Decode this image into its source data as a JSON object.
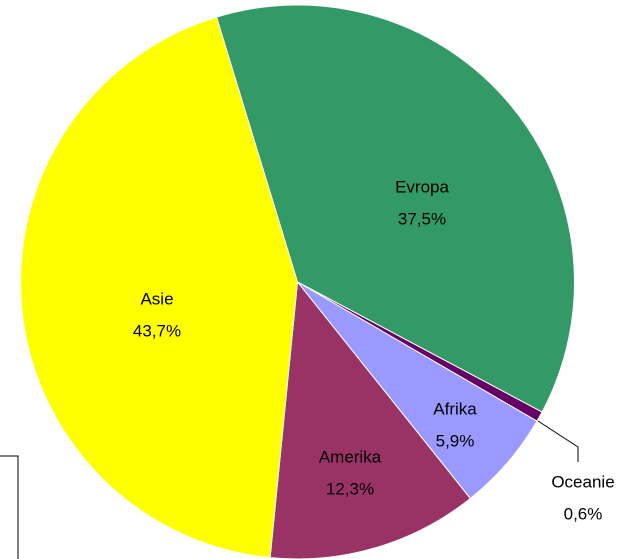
{
  "chart_data": {
    "type": "pie",
    "categories": [
      "Evropa",
      "Oceanie",
      "Afrika",
      "Amerika",
      "Asie"
    ],
    "values": [
      37.5,
      0.6,
      5.9,
      12.3,
      43.7
    ],
    "value_labels": [
      "37,5%",
      "0,6%",
      "5,9%",
      "12,3%",
      "43,7%"
    ],
    "colors": [
      "#339966",
      "#660066",
      "#9999ff",
      "#993366",
      "#ffff00"
    ]
  }
}
